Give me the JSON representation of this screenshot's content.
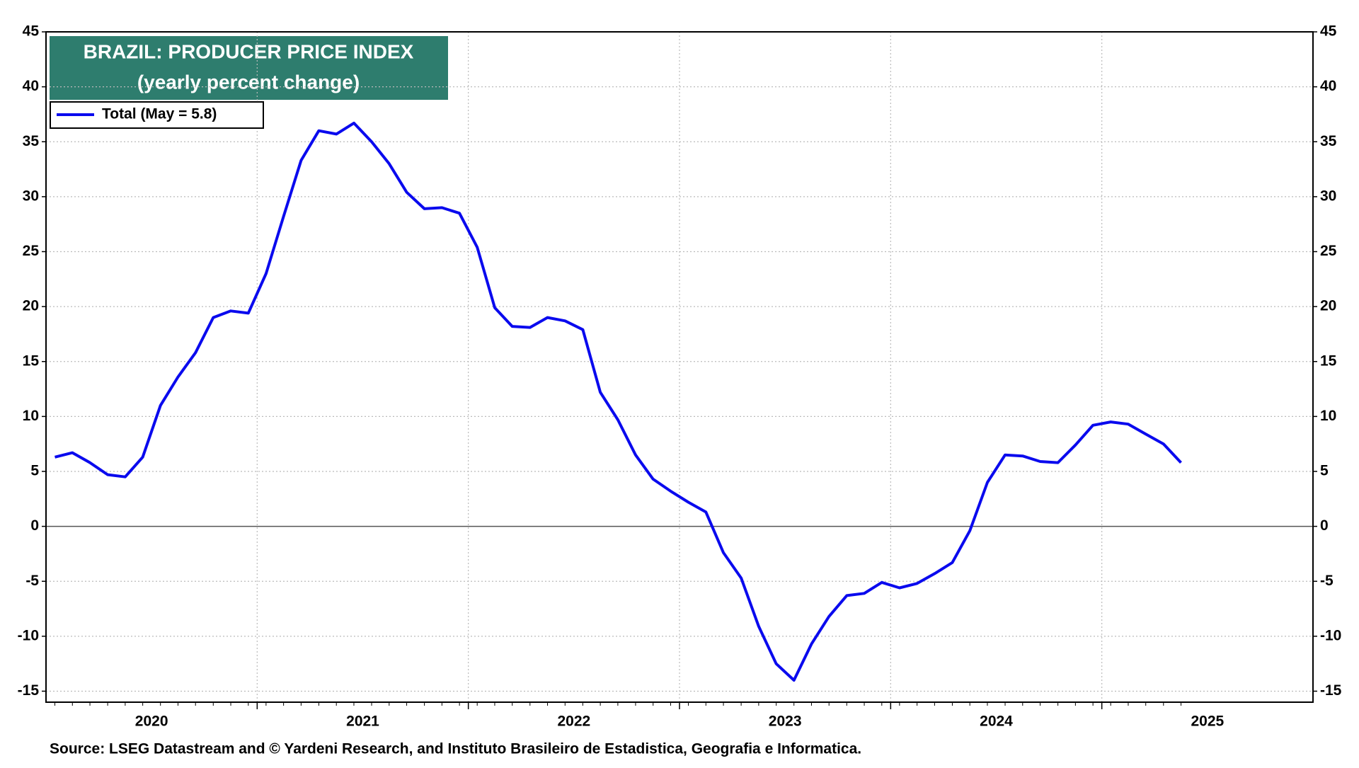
{
  "chart_data": {
    "type": "line",
    "title": "BRAZIL: PRODUCER PRICE INDEX",
    "subtitle": "(yearly percent change)",
    "source": "Source: LSEG Datastream and © Yardeni Research, and Instituto  Brasileiro de Estadistica, Geografia e Informatica.",
    "x": [
      2020.042,
      2020.125,
      2020.208,
      2020.292,
      2020.375,
      2020.458,
      2020.542,
      2020.625,
      2020.708,
      2020.792,
      2020.875,
      2020.958,
      2021.042,
      2021.125,
      2021.208,
      2021.292,
      2021.375,
      2021.458,
      2021.542,
      2021.625,
      2021.708,
      2021.792,
      2021.875,
      2021.958,
      2022.042,
      2022.125,
      2022.208,
      2022.292,
      2022.375,
      2022.458,
      2022.542,
      2022.625,
      2022.708,
      2022.792,
      2022.875,
      2022.958,
      2023.042,
      2023.125,
      2023.208,
      2023.292,
      2023.375,
      2023.458,
      2023.542,
      2023.625,
      2023.708,
      2023.792,
      2023.875,
      2023.958,
      2024.042,
      2024.125,
      2024.208,
      2024.292,
      2024.375,
      2024.458,
      2024.542,
      2024.625,
      2024.708,
      2024.792,
      2024.875,
      2024.958,
      2025.042,
      2025.125,
      2025.208,
      2025.292,
      2025.375
    ],
    "series": [
      {
        "name": "Total (May = 5.8)",
        "color": "#0a0aee",
        "values": [
          6.3,
          6.7,
          5.8,
          4.7,
          4.5,
          6.3,
          11.0,
          13.6,
          15.8,
          19.0,
          19.6,
          19.4,
          23.0,
          28.2,
          33.3,
          36.0,
          35.7,
          36.7,
          35.0,
          33.0,
          30.4,
          28.9,
          29.0,
          28.5,
          25.4,
          19.9,
          18.2,
          18.1,
          19.0,
          18.7,
          17.9,
          12.2,
          9.7,
          6.5,
          4.3,
          3.2,
          2.2,
          1.3,
          -2.4,
          -4.7,
          -9.1,
          -12.5,
          -14.0,
          -10.7,
          -8.2,
          -6.3,
          -6.1,
          -5.1,
          -5.6,
          -5.2,
          -4.3,
          -3.3,
          -0.4,
          4.0,
          6.5,
          6.4,
          5.9,
          5.8,
          7.4,
          9.2,
          9.5,
          9.3,
          8.4,
          7.5,
          5.8
        ]
      }
    ],
    "xlim": [
      2020,
      2026
    ],
    "xticks": [
      {
        "value": 2020.5,
        "label": "2020"
      },
      {
        "value": 2021.5,
        "label": "2021"
      },
      {
        "value": 2022.5,
        "label": "2022"
      },
      {
        "value": 2023.5,
        "label": "2023"
      },
      {
        "value": 2024.5,
        "label": "2024"
      },
      {
        "value": 2025.5,
        "label": "2025"
      }
    ],
    "xgridlines": [
      2021,
      2022,
      2023,
      2024,
      2025
    ],
    "ylim": [
      -16,
      45
    ],
    "yticks": [
      -15,
      -10,
      -5,
      0,
      5,
      10,
      15,
      20,
      25,
      30,
      35,
      40,
      45
    ],
    "grid": true,
    "legend": "upper left"
  }
}
